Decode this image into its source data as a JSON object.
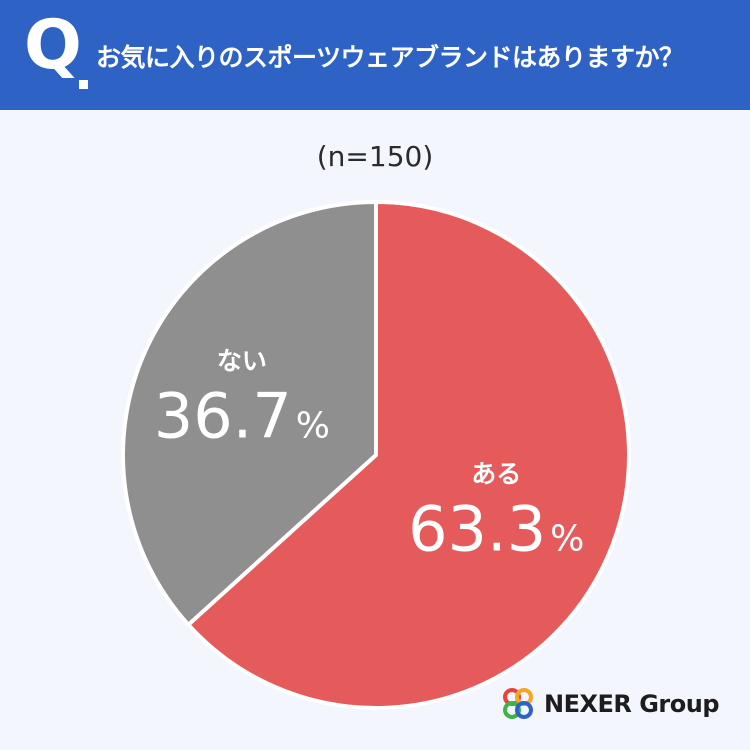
{
  "header": {
    "q_label": "Q",
    "question": "お気に入りのスポーツウェアブランドはありますか？",
    "bg_color": "#2f62c5"
  },
  "sample_size": "(n=150)",
  "chart_data": {
    "type": "pie",
    "title": "お気に入りのスポーツウェアブランドはありますか？",
    "slices": [
      {
        "label": "ある",
        "value": 63.3,
        "display": "63.3",
        "unit": "%",
        "color": "#e55b5b"
      },
      {
        "label": "ない",
        "value": 36.7,
        "display": "36.7",
        "unit": "%",
        "color": "#8f8f8f"
      }
    ],
    "start": "12 o'clock",
    "direction": "clockwise"
  },
  "logo": {
    "text": "NEXER Group",
    "ring_colors": [
      "#e8423b",
      "#f5a623",
      "#3bb54a",
      "#2f62c5"
    ]
  }
}
